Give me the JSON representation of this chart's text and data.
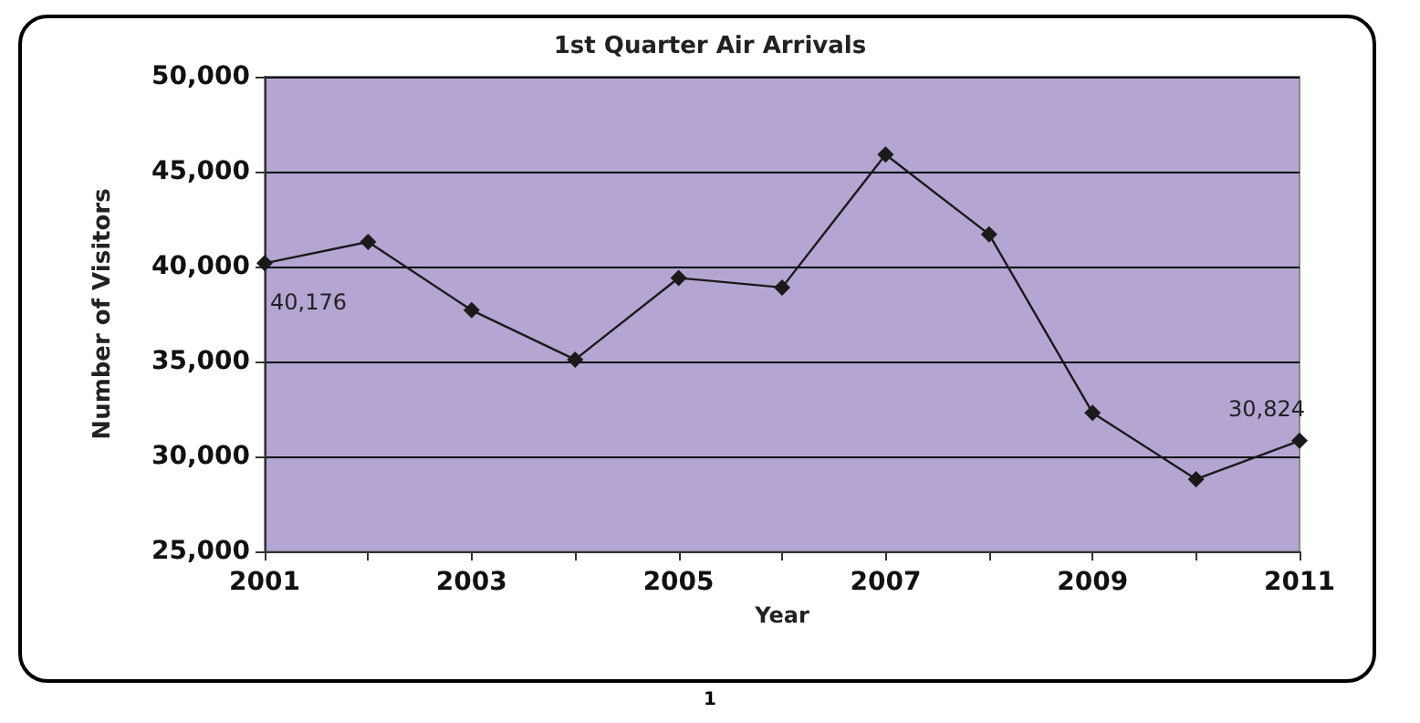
{
  "chart_data": {
    "type": "line",
    "title": "1st Quarter Air Arrivals",
    "xlabel": "Year",
    "ylabel": "Number of Visitors",
    "x": [
      2001,
      2002,
      2003,
      2004,
      2005,
      2006,
      2007,
      2008,
      2009,
      2010,
      2011
    ],
    "series": [
      {
        "color": "#1a1a1a",
        "values": [
          40176,
          41300,
          37700,
          35100,
          39400,
          38900,
          45900,
          41700,
          32300,
          28800,
          30824
        ],
        "value_labels": [
          "40,176",
          null,
          null,
          null,
          null,
          null,
          null,
          null,
          null,
          null,
          "30,824"
        ]
      }
    ],
    "xlim": [
      2001,
      2011
    ],
    "xticks": [
      2001,
      {
        "value": 2002,
        "label": null
      },
      2003,
      {
        "value": 2004,
        "label": null
      },
      2005,
      {
        "value": 2006,
        "label": null
      },
      2007,
      {
        "value": 2008,
        "label": null
      },
      2009,
      {
        "value": 2010,
        "label": null
      },
      2011
    ],
    "ylim": [
      25000,
      50000
    ],
    "yticks": [
      {
        "value": 25000,
        "label": "25,000"
      },
      {
        "value": 30000,
        "label": "30,000"
      },
      {
        "value": 35000,
        "label": "35,000"
      },
      {
        "value": 40000,
        "label": "40,000"
      },
      {
        "value": 45000,
        "label": "45,000"
      },
      {
        "value": 50000,
        "label": "50,000"
      }
    ],
    "grid": "y",
    "marker": "diamond",
    "line_style": "solid",
    "annotations": [
      "1"
    ]
  }
}
